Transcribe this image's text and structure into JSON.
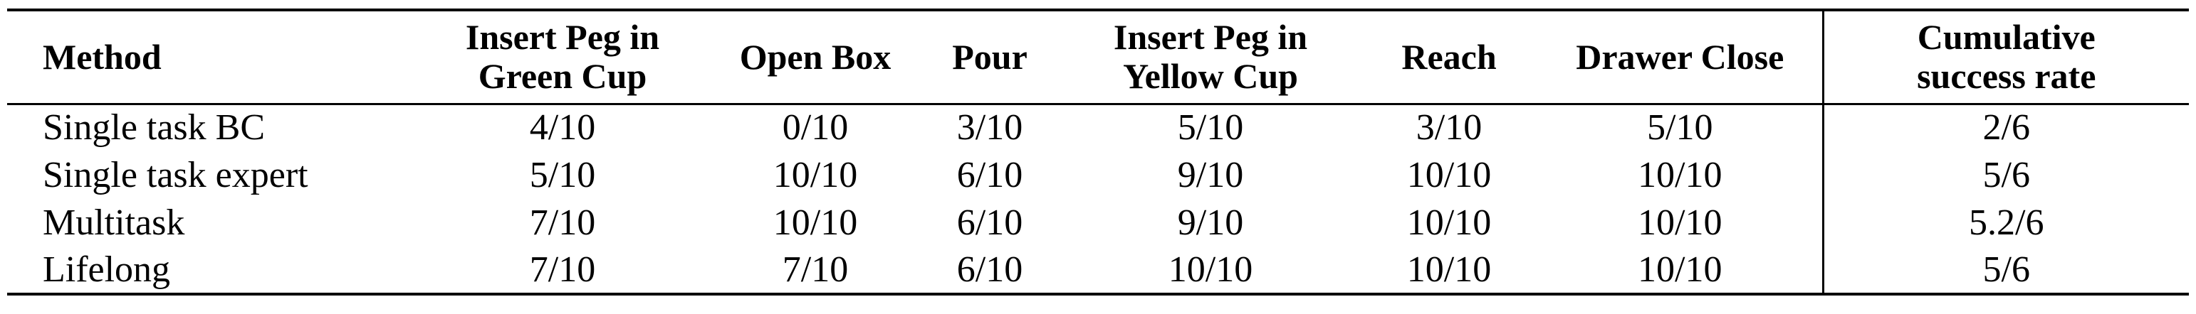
{
  "table": {
    "headers": [
      [
        "Method"
      ],
      [
        "Insert Peg in",
        "Green Cup"
      ],
      [
        "Open Box"
      ],
      [
        "Pour"
      ],
      [
        "Insert Peg in",
        "Yellow Cup"
      ],
      [
        "Reach"
      ],
      [
        "Drawer Close"
      ],
      [
        "Cumulative",
        "success rate"
      ]
    ],
    "rows": [
      [
        "Single task BC",
        "4/10",
        "0/10",
        "3/10",
        "5/10",
        "3/10",
        "5/10",
        "2/6"
      ],
      [
        "Single task expert",
        "5/10",
        "10/10",
        "6/10",
        "9/10",
        "10/10",
        "10/10",
        "5/6"
      ],
      [
        "Multitask",
        "7/10",
        "10/10",
        "6/10",
        "9/10",
        "10/10",
        "10/10",
        "5.2/6"
      ],
      [
        "Lifelong",
        "7/10",
        "7/10",
        "6/10",
        "10/10",
        "10/10",
        "10/10",
        "5/6"
      ]
    ]
  }
}
